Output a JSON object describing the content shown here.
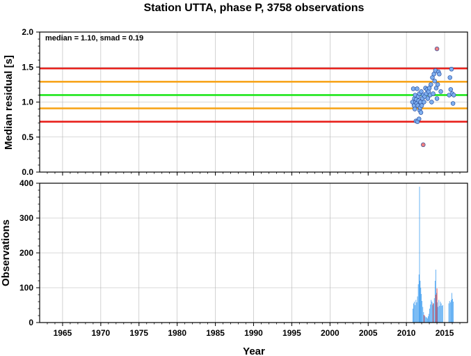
{
  "chart_data": [
    {
      "type": "scatter",
      "title": "Station UTTA, phase P, 3758 observations",
      "ylabel": "Median residual [s]",
      "annotation": "median = 1.10, smad = 0.19",
      "xlim": [
        1962,
        2018
      ],
      "ylim": [
        0,
        2.0
      ],
      "yticks": [
        "0.0",
        "0.5",
        "1.0",
        "1.5",
        "2.0"
      ],
      "grid": true,
      "reference_lines": [
        {
          "value": 1.48,
          "color": "#e8201b"
        },
        {
          "value": 1.29,
          "color": "#f7a51c"
        },
        {
          "value": 1.1,
          "color": "#1fe61b"
        },
        {
          "value": 0.91,
          "color": "#f7a51c"
        },
        {
          "value": 0.72,
          "color": "#e8201b"
        }
      ],
      "series": [
        {
          "marker_color": "#7fb0f0",
          "x": [
            2010.8,
            2010.9,
            2011.0,
            2011.05,
            2011.1,
            2011.15,
            2011.2,
            2011.25,
            2011.3,
            2011.35,
            2011.4,
            2011.45,
            2011.5,
            2011.55,
            2011.6,
            2011.65,
            2011.7,
            2011.75,
            2011.8,
            2011.85,
            2011.9,
            2011.95,
            2012.0,
            2012.1,
            2012.2,
            2012.3,
            2012.4,
            2012.5,
            2012.6,
            2012.7,
            2012.8,
            2012.9,
            2013.0,
            2013.1,
            2013.2,
            2013.3,
            2013.4,
            2013.5,
            2013.6,
            2013.7,
            2013.8,
            2013.9,
            2014.0,
            2014.1,
            2014.2,
            2014.3,
            2014.5,
            2015.6,
            2015.7,
            2015.8,
            2015.9,
            2016.0,
            2016.1,
            2016.2
          ],
          "y": [
            1.0,
            1.19,
            0.95,
            1.05,
            0.9,
            1.1,
            1.0,
            0.73,
            1.04,
            0.98,
            1.19,
            0.72,
            0.95,
            1.08,
            1.02,
            0.76,
            1.12,
            0.88,
            0.92,
            1.0,
            0.85,
            1.15,
            0.95,
            1.05,
            1.1,
            1.0,
            1.08,
            1.2,
            1.12,
            1.18,
            1.05,
            1.15,
            1.2,
            1.1,
            1.25,
            1.0,
            1.35,
            1.12,
            1.4,
            1.3,
            1.45,
            1.2,
            1.05,
            1.25,
            1.43,
            1.4,
            1.15,
            1.1,
            1.35,
            1.18,
            1.47,
            1.12,
            0.98,
            1.1
          ]
        },
        {
          "marker_color": "#f08080",
          "x": [
            2012.2,
            2014.0
          ],
          "y": [
            0.39,
            1.76
          ]
        }
      ]
    },
    {
      "type": "bar",
      "xlabel": "Year",
      "ylabel": "Observations",
      "xlim": [
        1962,
        2018
      ],
      "ylim": [
        0,
        400
      ],
      "xticks": [
        "1965",
        "1970",
        "1975",
        "1980",
        "1985",
        "1990",
        "1995",
        "2000",
        "2005",
        "2010",
        "2015"
      ],
      "yticks": [
        "0",
        "100",
        "200",
        "300",
        "400"
      ],
      "grid": true,
      "series": [
        {
          "color": "#3c9cf0",
          "x": [
            2010.85,
            2010.95,
            2011.05,
            2011.15,
            2011.25,
            2011.35,
            2011.45,
            2011.55,
            2011.65,
            2011.72,
            2011.8,
            2011.88,
            2011.96,
            2012.05,
            2012.15,
            2012.25,
            2012.35,
            2012.45,
            2012.55,
            2012.65,
            2012.75,
            2012.85,
            2012.95,
            2013.05,
            2013.15,
            2013.25,
            2013.35,
            2013.45,
            2013.55,
            2013.65,
            2013.75,
            2013.85,
            2013.95,
            2014.05,
            2014.15,
            2014.25,
            2014.35,
            2014.45,
            2014.55,
            2014.65,
            2014.75,
            2015.55,
            2015.65,
            2015.75,
            2015.85,
            2015.95,
            2016.05,
            2016.15
          ],
          "values": [
            40,
            55,
            60,
            50,
            65,
            58,
            75,
            110,
            138,
            390,
            120,
            100,
            82,
            62,
            45,
            30,
            20,
            18,
            15,
            15,
            12,
            18,
            25,
            40,
            52,
            65,
            60,
            50,
            55,
            70,
            120,
            152,
            85,
            58,
            45,
            65,
            48,
            60,
            55,
            48,
            50,
            55,
            62,
            58,
            65,
            85,
            68,
            60
          ]
        },
        {
          "color": "#e8201b",
          "x": [
            2012.3,
            2013.5,
            2013.85,
            2014.0
          ],
          "values": [
            22,
            55,
            80,
            98
          ]
        }
      ]
    }
  ]
}
